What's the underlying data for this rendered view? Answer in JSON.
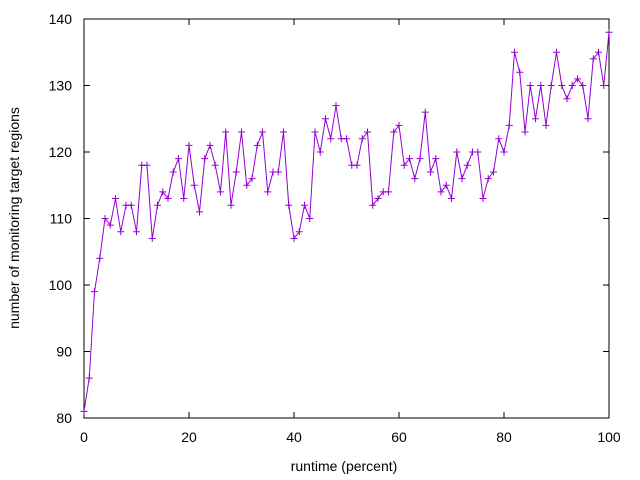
{
  "chart_data": {
    "type": "line",
    "title": "",
    "xlabel": "runtime (percent)",
    "ylabel": "number of monitoring target regions",
    "xlim": [
      0,
      100
    ],
    "ylim": [
      80,
      140
    ],
    "xticks": [
      0,
      20,
      40,
      60,
      80,
      100
    ],
    "yticks": [
      80,
      90,
      100,
      110,
      120,
      130,
      140
    ],
    "grid": false,
    "legend": "none",
    "series": [
      {
        "color": "#9400d3",
        "marker": "plus",
        "x": [
          0,
          1,
          2,
          3,
          4,
          5,
          6,
          7,
          8,
          9,
          10,
          11,
          12,
          13,
          14,
          15,
          16,
          17,
          18,
          19,
          20,
          21,
          22,
          23,
          24,
          25,
          26,
          27,
          28,
          29,
          30,
          31,
          32,
          33,
          34,
          35,
          36,
          37,
          38,
          39,
          40,
          41,
          42,
          43,
          44,
          45,
          46,
          47,
          48,
          49,
          50,
          51,
          52,
          53,
          54,
          55,
          56,
          57,
          58,
          59,
          60,
          61,
          62,
          63,
          64,
          65,
          66,
          67,
          68,
          69,
          70,
          71,
          72,
          73,
          74,
          75,
          76,
          77,
          78,
          79,
          80,
          81,
          82,
          83,
          84,
          85,
          86,
          87,
          88,
          89,
          90,
          91,
          92,
          93,
          94,
          95,
          96,
          97,
          98,
          99,
          100
        ],
        "y": [
          81,
          86,
          99,
          104,
          110,
          109,
          113,
          108,
          112,
          112,
          108,
          118,
          118,
          107,
          112,
          114,
          113,
          117,
          119,
          113,
          121,
          115,
          111,
          119,
          121,
          118,
          114,
          123,
          112,
          117,
          123,
          115,
          116,
          121,
          123,
          114,
          117,
          117,
          123,
          112,
          107,
          108,
          112,
          110,
          123,
          120,
          125,
          122,
          127,
          122,
          122,
          118,
          118,
          122,
          123,
          112,
          113,
          114,
          114,
          123,
          124,
          118,
          119,
          116,
          119,
          126,
          117,
          119,
          114,
          115,
          113,
          120,
          116,
          118,
          120,
          120,
          113,
          116,
          117,
          122,
          120,
          124,
          135,
          132,
          123,
          130,
          125,
          130,
          124,
          130,
          135,
          130,
          128,
          130,
          131,
          130,
          125,
          134,
          135,
          130,
          138
        ]
      }
    ]
  }
}
